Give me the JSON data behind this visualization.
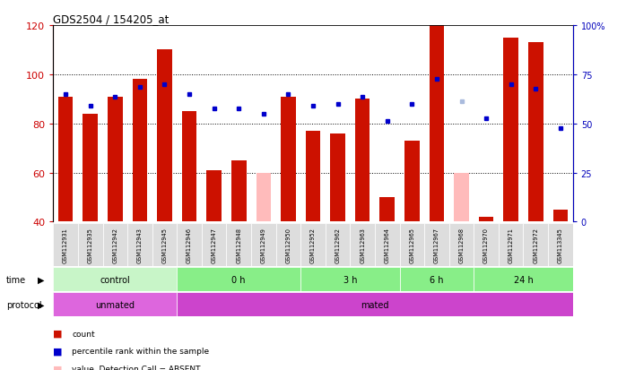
{
  "title": "GDS2504 / 154205_at",
  "samples": [
    "GSM112931",
    "GSM112935",
    "GSM112942",
    "GSM112943",
    "GSM112945",
    "GSM112946",
    "GSM112947",
    "GSM112948",
    "GSM112949",
    "GSM112950",
    "GSM112952",
    "GSM112962",
    "GSM112963",
    "GSM112964",
    "GSM112965",
    "GSM112967",
    "GSM112968",
    "GSM112970",
    "GSM112971",
    "GSM112972",
    "GSM113345"
  ],
  "bar_values": [
    91,
    84,
    91,
    98,
    110,
    85,
    61,
    65,
    60,
    91,
    77,
    76,
    90,
    50,
    73,
    120,
    60,
    42,
    115,
    113,
    45
  ],
  "bar_absent": [
    false,
    false,
    false,
    false,
    false,
    false,
    false,
    false,
    true,
    false,
    false,
    false,
    false,
    false,
    false,
    false,
    true,
    false,
    false,
    false,
    false
  ],
  "percentile": [
    92,
    87,
    91,
    95,
    96,
    92,
    86,
    86,
    84,
    92,
    87,
    88,
    91,
    81,
    88,
    98,
    89,
    82,
    96,
    94,
    78
  ],
  "rank_absent": [
    false,
    false,
    false,
    false,
    false,
    false,
    false,
    false,
    false,
    false,
    false,
    false,
    false,
    false,
    false,
    false,
    true,
    false,
    false,
    false,
    false
  ],
  "time_groups": [
    {
      "label": "control",
      "start": 0,
      "end": 5,
      "color": "#c8f5c8"
    },
    {
      "label": "0 h",
      "start": 5,
      "end": 10,
      "color": "#88ee88"
    },
    {
      "label": "3 h",
      "start": 10,
      "end": 14,
      "color": "#88ee88"
    },
    {
      "label": "6 h",
      "start": 14,
      "end": 17,
      "color": "#88ee88"
    },
    {
      "label": "24 h",
      "start": 17,
      "end": 21,
      "color": "#88ee88"
    }
  ],
  "protocol_groups": [
    {
      "label": "unmated",
      "start": 0,
      "end": 5,
      "color": "#dd66dd"
    },
    {
      "label": "mated",
      "start": 5,
      "end": 21,
      "color": "#cc44cc"
    }
  ],
  "ylim_left": [
    40,
    120
  ],
  "ylim_right": [
    0,
    100
  ],
  "bar_color": "#cc1100",
  "bar_absent_color": "#ffbbbb",
  "rank_color": "#0000cc",
  "rank_absent_color": "#aabbdd",
  "grid_color": "#555555",
  "tick_color_left": "#cc0000",
  "tick_color_right": "#0000bb"
}
